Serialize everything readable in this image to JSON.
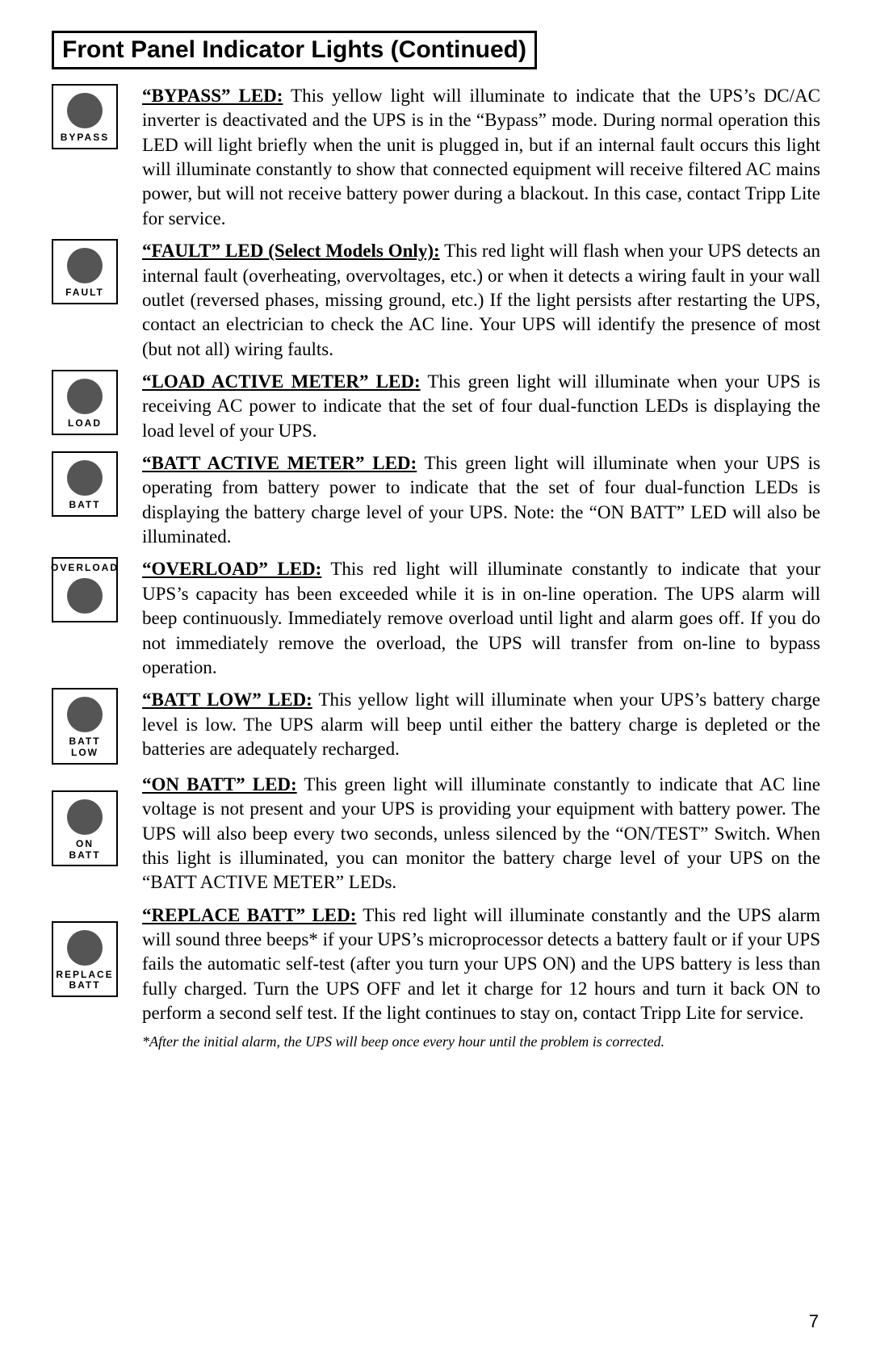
{
  "title": "Front Panel Indicator Lights (Continued)",
  "page_number": "7",
  "footnote": "*After the initial alarm, the UPS will beep once every hour until the problem is corrected.",
  "sections": [
    {
      "label": "BYPASS",
      "label_pos": "bottom",
      "heading": "“BYPASS” LED:",
      "body": " This yellow light will illuminate to indicate that the UPS’s DC/AC inverter is deactivated and the UPS is in the “Bypass” mode. During normal operation this LED will light briefly when the unit is plugged in, but if an internal fault occurs this light will illuminate constantly to show that connected equipment will receive filtered AC mains power, but will not receive battery power during a blackout. In this case, contact Tripp Lite for service."
    },
    {
      "label": "FAULT",
      "label_pos": "bottom",
      "heading": "“FAULT” LED (Select Models Only):",
      "body": " This red light will flash when your UPS detects an internal fault (overheating, overvoltages, etc.) or when it detects a wiring fault in your wall outlet (reversed phases, missing ground, etc.) If the light persists after restarting the UPS, contact an electrician to check the AC line. Your UPS will identify the presence of most (but not all) wiring faults."
    },
    {
      "label": "LOAD",
      "label_pos": "bottom",
      "heading": "“LOAD ACTIVE METER” LED:",
      "body": " This green light will illuminate when your UPS is receiving AC power to indicate that the set of four dual-function LEDs is displaying the load level of your UPS."
    },
    {
      "label": "BATT",
      "label_pos": "bottom",
      "heading": "“BATT ACTIVE METER” LED:",
      "body": " This green light will illuminate when your UPS is operating from battery power to indicate that the set of four dual-function LEDs is displaying the battery charge level of your UPS. Note: the “ON BATT” LED will also be illuminated."
    },
    {
      "label": "OVERLOAD",
      "label_pos": "top",
      "heading": "“OVERLOAD” LED:",
      "body": " This red light will illuminate constantly to indicate that your UPS’s capacity has been exceeded while it is in on-line operation. The UPS alarm will beep continuously. Immediately remove overload until light and alarm goes off. If you do not immediately remove the overload, the UPS will transfer from on-line to bypass operation."
    },
    {
      "label": "BATT LOW",
      "label_pos": "bottom",
      "heading": "“BATT LOW” LED:",
      "body": " This yellow light will illuminate when your UPS’s battery charge level is low. The UPS alarm will beep until either the battery charge is depleted or the batteries are adequately recharged."
    },
    {
      "label": "ON\nBATT",
      "label_pos": "bottom",
      "heading": "“ON BATT” LED:",
      "body": " This green light will illuminate constantly to indicate that AC line voltage is not present and your UPS is providing your equipment with battery power. The UPS will also beep every two seconds, unless silenced by the “ON/TEST” Switch. When this light is illuminated, you can monitor the battery charge level of your UPS on the “BATT ACTIVE METER” LEDs."
    },
    {
      "label": "REPLACE\nBATT",
      "label_pos": "bottom",
      "heading": "“REPLACE BATT” LED:",
      "body": " This red light will illuminate constantly and the UPS alarm will sound three beeps* if your UPS’s microprocessor detects a battery fault or if your UPS fails the automatic self-test (after you turn your UPS ON) and the UPS battery is less than fully charged. Turn the UPS OFF and let it charge for 12 hours and turn it back ON to perform a second self test. If the light continues to stay on, contact Tripp Lite for service."
    }
  ],
  "icon_offsets": [
    "0px",
    "0px",
    "0px",
    "0px",
    "0px",
    "0px",
    "22px",
    "22px"
  ]
}
